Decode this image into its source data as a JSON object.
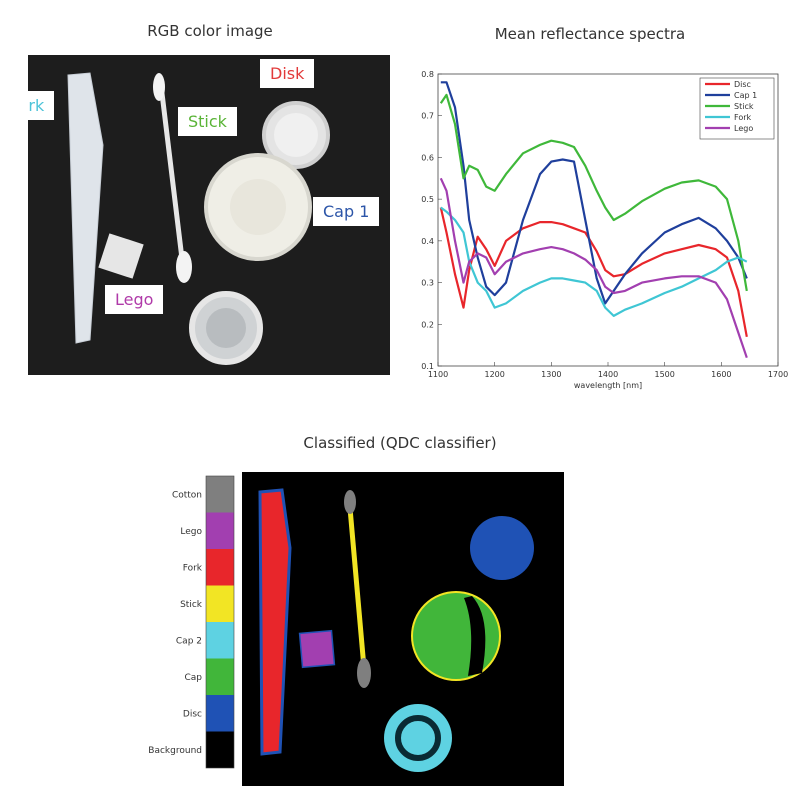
{
  "titles": {
    "rgb": "RGB color image",
    "spectra": "Mean reflectance spectra",
    "classified": "Classified (QDC classifier)"
  },
  "photo_labels": {
    "fork": "Fork",
    "stick": "Stick",
    "disk": "Disk",
    "cap1": "Cap 1",
    "lego": "Lego"
  },
  "colors": {
    "disc": "#e8262b",
    "cap1": "#1f3f9c",
    "stick": "#3fb83a",
    "fork": "#3fc6d4",
    "lego": "#a23fb0",
    "label_fork": "#4dc3d8",
    "label_stick": "#5ab437",
    "label_disk": "#e23b3b",
    "label_cap1": "#2c55a8",
    "label_lego": "#b03aa9"
  },
  "chart_data": {
    "type": "line",
    "title": "Mean reflectance spectra",
    "xlabel": "wavelength [nm]",
    "ylabel": "",
    "xlim": [
      1100,
      1700
    ],
    "ylim": [
      0.1,
      0.8
    ],
    "xticks": [
      "1100",
      "1200",
      "1300",
      "1400",
      "1500",
      "1600",
      "1700"
    ],
    "yticks": [
      "0.1",
      "0.2",
      "0.3",
      "0.4",
      "0.5",
      "0.6",
      "0.7",
      "0.8"
    ],
    "legend_position": "top-right",
    "x": [
      1105,
      1115,
      1130,
      1145,
      1155,
      1170,
      1185,
      1200,
      1220,
      1250,
      1280,
      1300,
      1320,
      1340,
      1360,
      1380,
      1395,
      1410,
      1430,
      1460,
      1500,
      1530,
      1560,
      1590,
      1610,
      1630,
      1645
    ],
    "series": [
      {
        "name": "Disc",
        "color": "#e8262b",
        "values": [
          0.48,
          0.42,
          0.32,
          0.24,
          0.33,
          0.41,
          0.38,
          0.34,
          0.4,
          0.43,
          0.445,
          0.445,
          0.44,
          0.43,
          0.42,
          0.375,
          0.33,
          0.315,
          0.32,
          0.345,
          0.37,
          0.38,
          0.39,
          0.38,
          0.36,
          0.28,
          0.17
        ]
      },
      {
        "name": "Cap 1",
        "color": "#1f3f9c",
        "values": [
          0.78,
          0.78,
          0.72,
          0.58,
          0.45,
          0.36,
          0.29,
          0.27,
          0.3,
          0.45,
          0.56,
          0.59,
          0.595,
          0.59,
          0.45,
          0.31,
          0.25,
          0.28,
          0.32,
          0.37,
          0.42,
          0.44,
          0.455,
          0.43,
          0.4,
          0.36,
          0.31
        ]
      },
      {
        "name": "Stick",
        "color": "#3fb83a",
        "values": [
          0.73,
          0.75,
          0.68,
          0.55,
          0.58,
          0.57,
          0.53,
          0.52,
          0.56,
          0.61,
          0.63,
          0.64,
          0.635,
          0.625,
          0.58,
          0.52,
          0.48,
          0.45,
          0.465,
          0.495,
          0.525,
          0.54,
          0.545,
          0.53,
          0.5,
          0.4,
          0.28
        ]
      },
      {
        "name": "Fork",
        "color": "#3fc6d4",
        "values": [
          0.48,
          0.47,
          0.45,
          0.42,
          0.35,
          0.3,
          0.28,
          0.24,
          0.25,
          0.28,
          0.3,
          0.31,
          0.31,
          0.305,
          0.3,
          0.28,
          0.24,
          0.22,
          0.235,
          0.25,
          0.275,
          0.29,
          0.31,
          0.33,
          0.35,
          0.36,
          0.35
        ]
      },
      {
        "name": "Lego",
        "color": "#a23fb0",
        "values": [
          0.55,
          0.52,
          0.4,
          0.3,
          0.35,
          0.37,
          0.36,
          0.32,
          0.35,
          0.37,
          0.38,
          0.385,
          0.38,
          0.37,
          0.355,
          0.33,
          0.29,
          0.275,
          0.28,
          0.3,
          0.31,
          0.315,
          0.315,
          0.3,
          0.26,
          0.18,
          0.12
        ]
      }
    ]
  },
  "class_legend": [
    {
      "name": "Cotton",
      "color": "#7f7f7f"
    },
    {
      "name": "Lego",
      "color": "#a23fb0"
    },
    {
      "name": "Fork",
      "color": "#e8262b"
    },
    {
      "name": "Stick",
      "color": "#f2e524"
    },
    {
      "name": "Cap 2",
      "color": "#5ed2e2"
    },
    {
      "name": "Cap",
      "color": "#41b63a"
    },
    {
      "name": "Disc",
      "color": "#1f52b5"
    },
    {
      "name": "Background",
      "color": "#000000"
    }
  ]
}
